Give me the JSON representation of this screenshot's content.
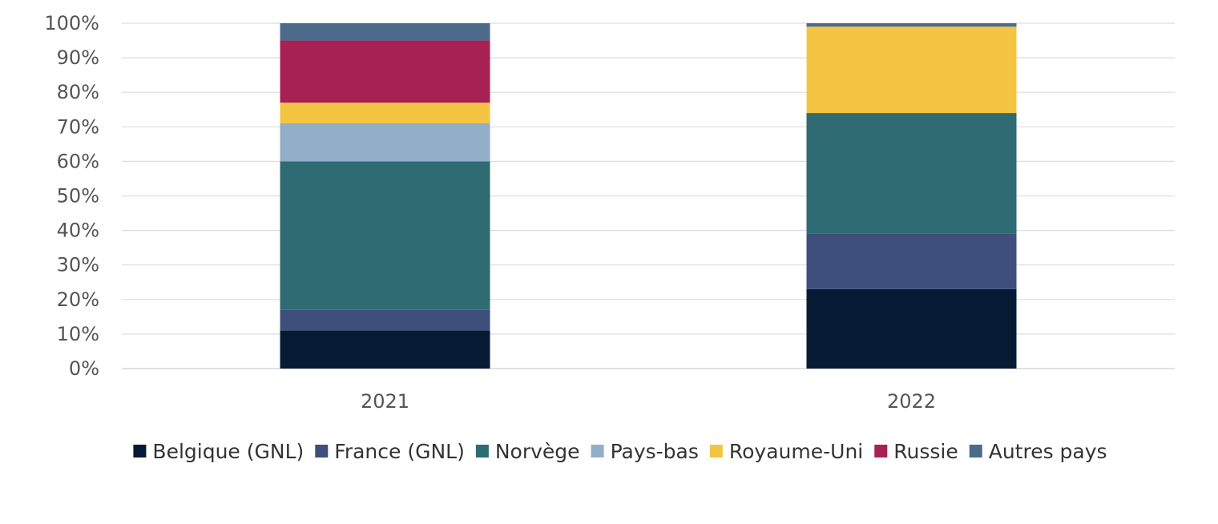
{
  "chart_data": {
    "type": "bar",
    "stacked": true,
    "categories": [
      "2021",
      "2022"
    ],
    "series": [
      {
        "name": "Belgique (GNL)",
        "color": "#061a33",
        "values": [
          11,
          23
        ]
      },
      {
        "name": "France (GNL)",
        "color": "#3e4f7b",
        "values": [
          6,
          16
        ]
      },
      {
        "name": "Norvège",
        "color": "#2e6b73",
        "values": [
          43,
          35
        ]
      },
      {
        "name": "Pays-bas",
        "color": "#93aec9",
        "values": [
          11,
          0
        ]
      },
      {
        "name": "Royaume-Uni",
        "color": "#f4c443",
        "values": [
          6,
          25
        ]
      },
      {
        "name": "Russie",
        "color": "#a82154",
        "values": [
          18,
          0
        ]
      },
      {
        "name": "Autres pays",
        "color": "#4c6b8b",
        "values": [
          5,
          1
        ]
      }
    ],
    "y_ticks": [
      "0%",
      "10%",
      "20%",
      "30%",
      "40%",
      "50%",
      "60%",
      "70%",
      "80%",
      "90%",
      "100%"
    ],
    "ylim": [
      0,
      100
    ],
    "grid": true,
    "legend_position": "bottom"
  }
}
